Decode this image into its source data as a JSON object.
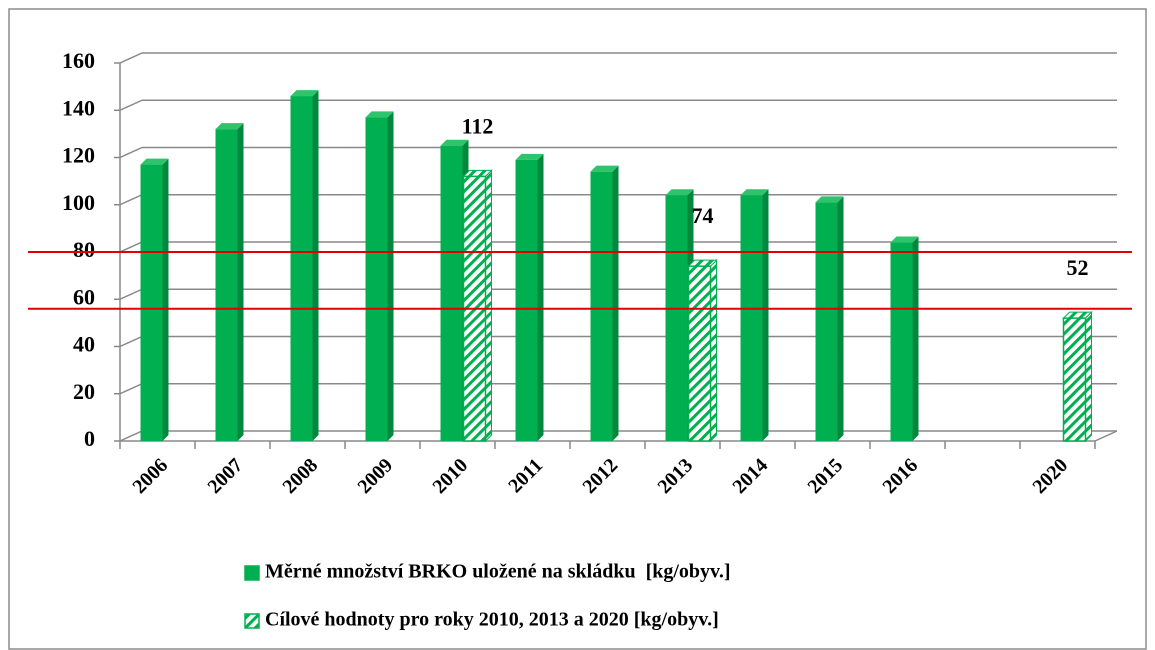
{
  "chart_data": {
    "type": "bar",
    "categories": [
      "2006",
      "2007",
      "2008",
      "2009",
      "2010",
      "2011",
      "2012",
      "2013",
      "2014",
      "2015",
      "2016",
      null,
      "2020"
    ],
    "series": [
      {
        "name": "Měrné množství BRKO uložené na skládku  [kg/obyv.]",
        "color": "#00b050",
        "values": [
          117,
          132,
          146,
          137,
          125,
          119,
          114,
          104,
          104,
          101,
          84,
          null,
          null
        ]
      },
      {
        "name": "Cílové hodnoty pro roky 2010, 2013 a 2020 [kg/obyv.]",
        "color": "#00b050",
        "pattern": "hatch",
        "values": [
          null,
          null,
          null,
          null,
          112,
          null,
          null,
          74,
          null,
          null,
          null,
          null,
          52
        ]
      }
    ],
    "ylim": [
      0,
      160
    ],
    "yticks": [
      0,
      20,
      40,
      60,
      80,
      100,
      120,
      140,
      160
    ],
    "grid": true,
    "reference_lines": [
      {
        "value": 80,
        "color": "#e00000"
      },
      {
        "value": 56,
        "color": "#e00000"
      }
    ],
    "data_labels_series": 1,
    "legend": "bottom"
  }
}
